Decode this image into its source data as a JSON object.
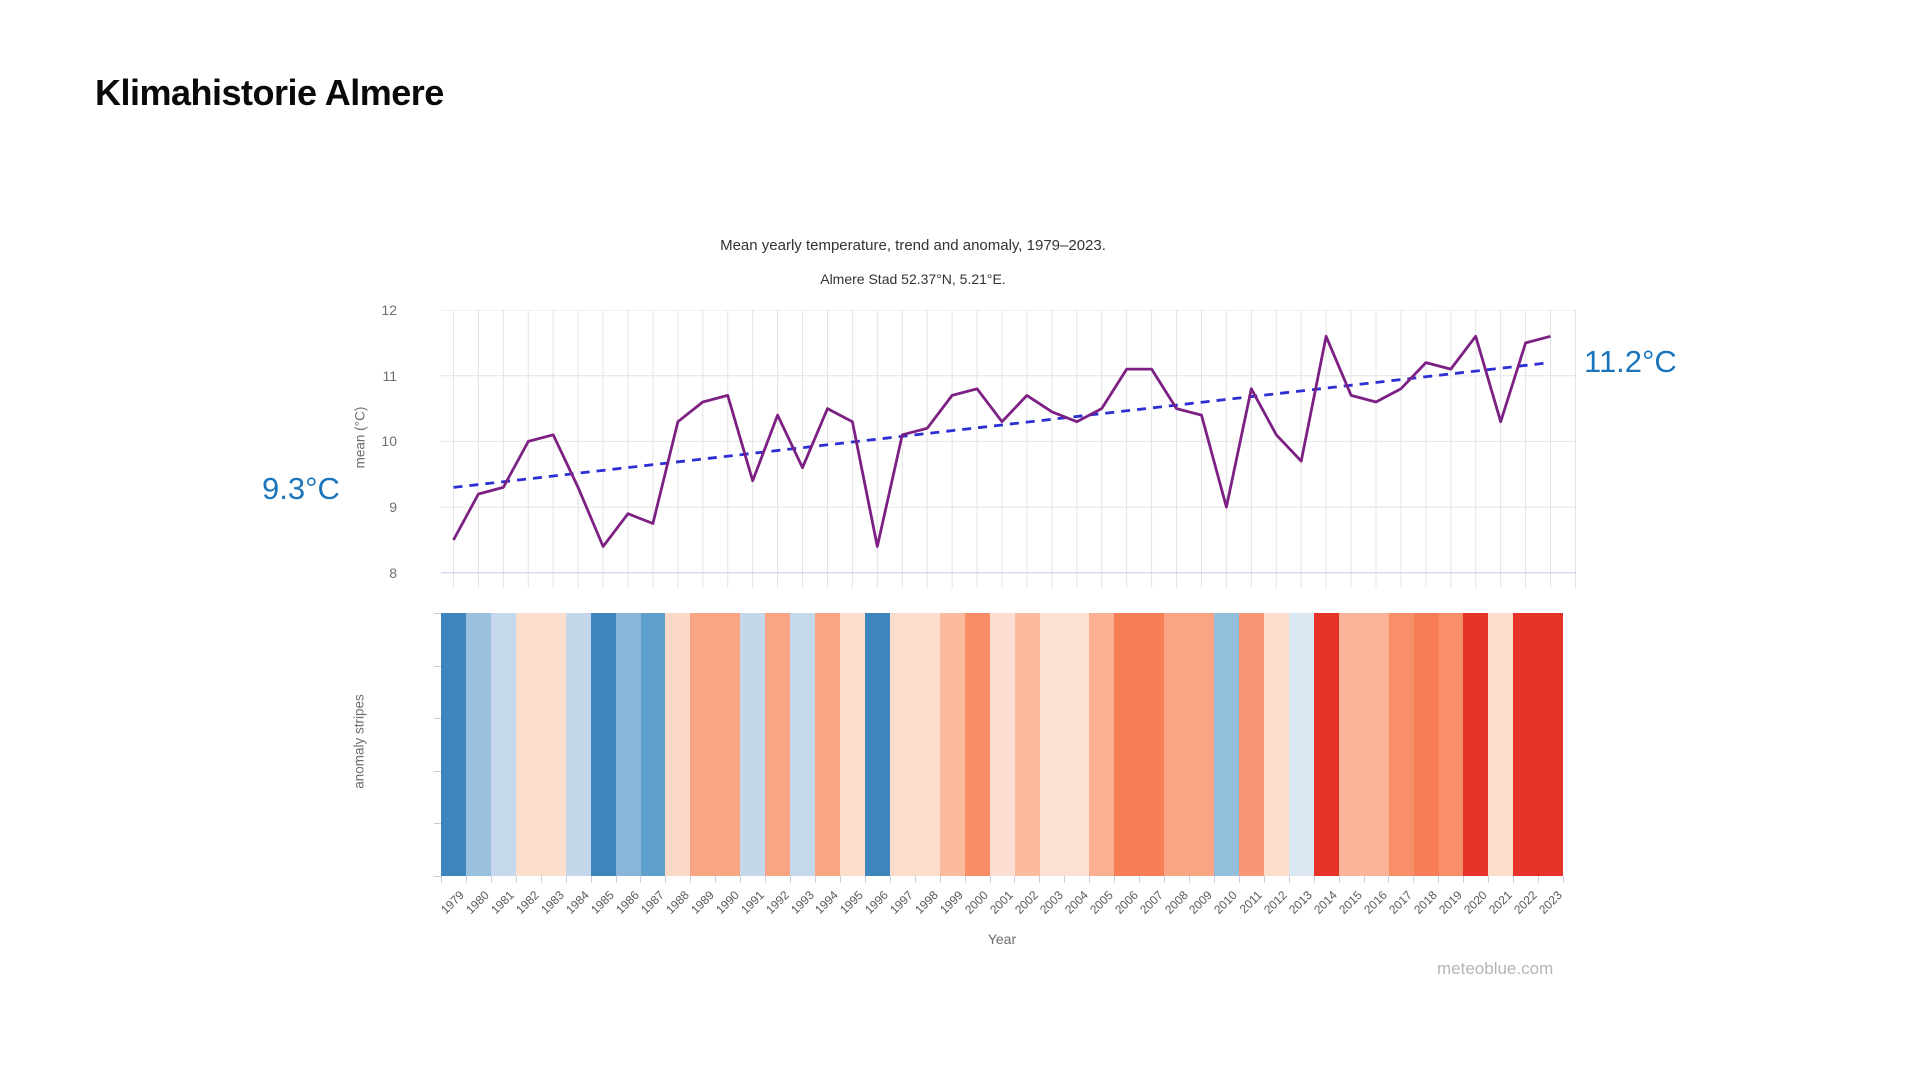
{
  "page": {
    "title": "Klimahistorie Almere"
  },
  "watermark": "meteoblue.com",
  "chart_data": {
    "type": "line",
    "title": "Mean yearly temperature, trend and anomaly, 1979–2023.",
    "subtitle": "Almere Stad 52.37°N, 5.21°E.",
    "xlabel": "Year",
    "ylabel": "mean (°C)",
    "stripes_ylabel": "anomaly stripes",
    "ylim": [
      8,
      12
    ],
    "y_ticks": [
      12,
      11,
      10,
      9,
      8
    ],
    "grid": "on",
    "legend_position": "none",
    "years": [
      1979,
      1980,
      1981,
      1982,
      1983,
      1984,
      1985,
      1986,
      1987,
      1988,
      1989,
      1990,
      1991,
      1992,
      1993,
      1994,
      1995,
      1996,
      1997,
      1998,
      1999,
      2000,
      2001,
      2002,
      2003,
      2004,
      2005,
      2006,
      2007,
      2008,
      2009,
      2010,
      2011,
      2012,
      2013,
      2014,
      2015,
      2016,
      2017,
      2018,
      2019,
      2020,
      2021,
      2022,
      2023
    ],
    "series": [
      {
        "name": "mean yearly temperature (°C)",
        "values": [
          8.5,
          9.2,
          9.3,
          10.0,
          10.1,
          9.3,
          8.4,
          8.9,
          8.75,
          10.3,
          10.6,
          10.7,
          9.4,
          10.4,
          9.6,
          10.5,
          10.3,
          8.4,
          10.1,
          10.2,
          10.7,
          10.8,
          10.3,
          10.7,
          10.45,
          10.3,
          10.5,
          11.1,
          11.1,
          10.5,
          10.4,
          9.0,
          10.8,
          10.1,
          9.7,
          11.6,
          10.7,
          10.6,
          10.8,
          11.2,
          11.1,
          11.6,
          10.3,
          11.5,
          11.6
        ]
      }
    ],
    "trend": {
      "start_value": 9.3,
      "end_value": 11.2,
      "label_start": "9.3°C",
      "label_end": "11.2°C",
      "style": "dashed"
    },
    "anomaly_stripes": {
      "colors": [
        "#3d85bd",
        "#99c0dd",
        "#c6d9ec",
        "#fcdecd",
        "#fcdecd",
        "#c4d7eb",
        "#3d85bd",
        "#88b5d8",
        "#5f9fcb",
        "#fcd9c6",
        "#f9a583",
        "#f9a583",
        "#c4d7eb",
        "#f9a583",
        "#c6d9ec",
        "#f9a583",
        "#fcdccb",
        "#3d85bd",
        "#fcdccb",
        "#fcdccb",
        "#fbbb9c",
        "#f98e66",
        "#fcdfd2",
        "#fbbb9c",
        "#fce0d3",
        "#fce0d3",
        "#fbb091",
        "#f87f55",
        "#f87f55",
        "#f9a583",
        "#f9a583",
        "#92c0dc",
        "#f99673",
        "#fcdccb",
        "#dbe7f2",
        "#e63228",
        "#fbb498",
        "#fbb498",
        "#f98e6b",
        "#f77d57",
        "#f98e6b",
        "#e63228",
        "#fcdccb",
        "#e63228",
        "#e63228"
      ]
    },
    "colors": {
      "line": "#7d2083",
      "trend": "#2d2fd5",
      "trend_label": "#1b75bc",
      "grid": "#e4e4e4",
      "baseline_8": "#c9c9f0",
      "tick_text": "#6e6e6e"
    }
  }
}
